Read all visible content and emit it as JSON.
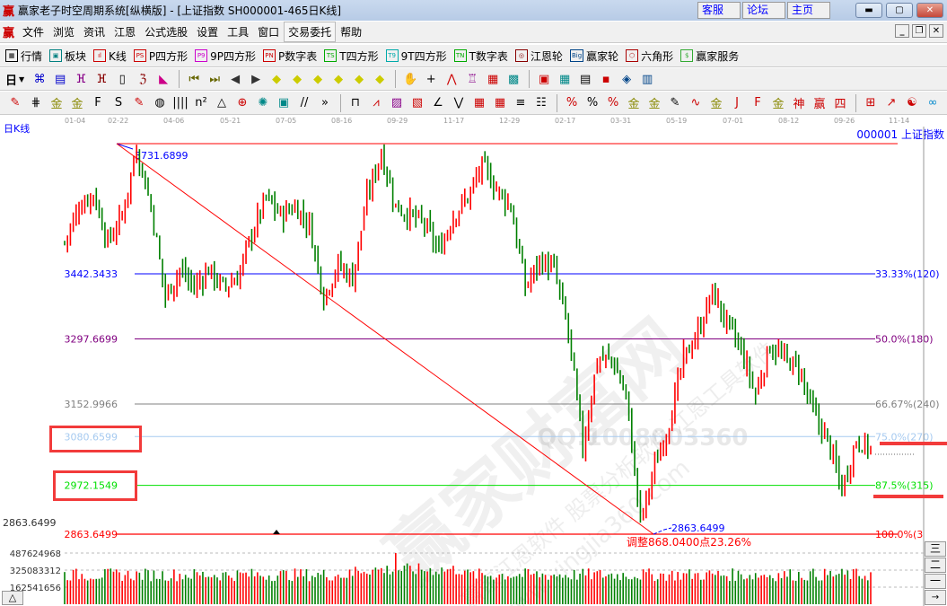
{
  "window": {
    "title": "赢家老子时空周期系统[纵横版] - [上证指数  SH000001-465日K线]",
    "logo": "赢",
    "links": [
      "客服",
      "论坛",
      "主页"
    ],
    "controls": [
      "minimize",
      "maximize",
      "close"
    ]
  },
  "menu": {
    "items": [
      "文件",
      "浏览",
      "资讯",
      "江恩",
      "公式选股",
      "设置",
      "工具",
      "窗口",
      "交易委托",
      "帮助"
    ],
    "highlighted": "交易委托"
  },
  "toolbar1": [
    {
      "icon": "quote-table-icon",
      "glyph": "▦",
      "label": "行情",
      "color": "#000"
    },
    {
      "icon": "sector-icon",
      "glyph": "▣",
      "label": "板块",
      "color": "#008080"
    },
    {
      "icon": "kline-icon",
      "glyph": "ıl",
      "label": "K线",
      "color": "#c00"
    },
    {
      "icon": "ps-icon",
      "glyph": "PS",
      "label": "P四方形",
      "color": "#c00"
    },
    {
      "icon": "p9-icon",
      "glyph": "P9",
      "label": "9P四方形",
      "color": "#c0c"
    },
    {
      "icon": "pn-icon",
      "glyph": "PN",
      "label": "P数字表",
      "color": "#c00"
    },
    {
      "icon": "ts-icon",
      "glyph": "TS",
      "label": "T四方形",
      "color": "#0a0"
    },
    {
      "icon": "t9-icon",
      "glyph": "T9",
      "label": "9T四方形",
      "color": "#0aa"
    },
    {
      "icon": "tn-icon",
      "glyph": "TN",
      "label": "T数字表",
      "color": "#0a0"
    },
    {
      "icon": "gann-wheel-icon",
      "glyph": "◎",
      "label": "江恩轮",
      "color": "#800"
    },
    {
      "icon": "big-wheel-icon",
      "glyph": "Big",
      "label": "赢家轮",
      "color": "#048"
    },
    {
      "icon": "hexagon-icon",
      "glyph": "⬡",
      "label": "六角形",
      "color": "#a00"
    },
    {
      "icon": "dollar-icon",
      "glyph": "$",
      "label": "赢家服务",
      "color": "#3a3"
    }
  ],
  "toolbar2": {
    "period": "日",
    "icons": [
      [
        "network-icon",
        "⌘",
        "#00c"
      ],
      [
        "notes-icon",
        "▤",
        "#00c"
      ],
      [
        "wave3-icon",
        "ⴼ",
        "#808"
      ],
      [
        "wave9-icon",
        "ⴼ",
        "#800"
      ],
      [
        "candle-icon",
        "▯",
        "#000"
      ],
      [
        "formula-icon",
        "ℨ",
        "#800"
      ],
      [
        "volume-profile-icon",
        "◣",
        "#c08"
      ],
      [
        "first-icon",
        "⏮",
        "#660"
      ],
      [
        "last-icon",
        "⏭",
        "#660"
      ],
      [
        "left-icon",
        "◀",
        "#333"
      ],
      [
        "right-icon",
        "▶",
        "#333"
      ],
      [
        "diamond-left-icon",
        "◆",
        "#cc0"
      ],
      [
        "diamond-right-icon",
        "◆",
        "#cc0"
      ],
      [
        "diamond-h-icon",
        "◆",
        "#cc0"
      ],
      [
        "diamond-x-icon",
        "◆",
        "#cc0"
      ],
      [
        "diamond-star-icon",
        "◆",
        "#cc0"
      ],
      [
        "diamond-v-icon",
        "◆",
        "#cc0"
      ],
      [
        "hand-icon",
        "✋",
        "#000"
      ],
      [
        "crosshair-icon",
        "+",
        "#000"
      ],
      [
        "line-tool-icon",
        "⋀",
        "#c00"
      ],
      [
        "shirt-icon",
        "♖",
        "#808"
      ],
      [
        "grid-icon",
        "▦",
        "#c00"
      ],
      [
        "pattern-icon",
        "▩",
        "#088"
      ],
      [
        "calendar-icon",
        "▣",
        "#c00"
      ],
      [
        "calculator-icon",
        "▦",
        "#088"
      ],
      [
        "document-icon",
        "▤",
        "#000"
      ],
      [
        "save-icon",
        "▪",
        "#c00"
      ],
      [
        "network2-icon",
        "◈",
        "#048"
      ],
      [
        "print-icon",
        "▥",
        "#048"
      ]
    ]
  },
  "toolbar3": {
    "icons": [
      [
        "pen-icon",
        "✎",
        "#c00"
      ],
      [
        "grid3-icon",
        "⋕",
        "#000"
      ],
      [
        "gold1-icon",
        "金",
        "#880"
      ],
      [
        "gold2-icon",
        "金",
        "#880"
      ],
      [
        "f-icon",
        "F",
        "#000"
      ],
      [
        "spiral-icon",
        "S",
        "#000"
      ],
      [
        "pen2-icon",
        "✎",
        "#c00"
      ],
      [
        "circle-grid-icon",
        "◍",
        "#000"
      ],
      [
        "lines4-icon",
        "||||",
        "#000"
      ],
      [
        "n2-icon",
        "n²",
        "#000"
      ],
      [
        "triangle-icon",
        "△",
        "#000"
      ],
      [
        "target-icon",
        "⊕",
        "#c00"
      ],
      [
        "web-icon",
        "✺",
        "#088"
      ],
      [
        "square-web-icon",
        "▣",
        "#088"
      ],
      [
        "gap-icon",
        "//",
        "#000"
      ],
      [
        "more-icon",
        "»",
        "#000"
      ],
      [
        "box-icon",
        "⊓",
        "#000"
      ],
      [
        "fan-icon",
        "⩘",
        "#c00"
      ],
      [
        "gann-box-icon",
        "▨",
        "#808"
      ],
      [
        "gann-sq-icon",
        "▧",
        "#c00"
      ],
      [
        "angle-icon",
        "∠",
        "#000"
      ],
      [
        "zigzag-icon",
        "⋁",
        "#000"
      ],
      [
        "grid-red-icon",
        "▦",
        "#c00"
      ],
      [
        "grid-red2-icon",
        "▦",
        "#c00"
      ],
      [
        "parallel-icon",
        "≡",
        "#000"
      ],
      [
        "ruler-icon",
        "☷",
        "#000"
      ],
      [
        "percent-red-icon",
        "%",
        "#c00"
      ],
      [
        "percent-icon",
        "%",
        "#000"
      ],
      [
        "percent-lines-icon",
        "%",
        "#c00"
      ],
      [
        "gold-circle-icon",
        "金",
        "#880"
      ],
      [
        "gold-lines-icon",
        "金",
        "#880"
      ],
      [
        "pen3-icon",
        "✎",
        "#000"
      ],
      [
        "sine-icon",
        "∿",
        "#c00"
      ],
      [
        "gold3-icon",
        "金",
        "#880"
      ],
      [
        "j-angle-icon",
        "J",
        "#c00"
      ],
      [
        "f-angle-icon",
        "F",
        "#c00"
      ],
      [
        "gold-angle-icon",
        "金",
        "#880"
      ],
      [
        "shen-icon",
        "神",
        "#c00"
      ],
      [
        "ying-icon",
        "赢",
        "#c00"
      ],
      [
        "si-icon",
        "四",
        "#c00"
      ],
      [
        "grid-yellow-icon",
        "⊞",
        "#c00"
      ],
      [
        "chart-line-icon",
        "↗",
        "#c00"
      ],
      [
        "yinyang-icon",
        "☯",
        "#c00"
      ],
      [
        "infinity-icon",
        "∞",
        "#08c"
      ]
    ]
  },
  "chart": {
    "period_label": "日K线",
    "symbol": "000001 上证指数",
    "date_ticks": [
      "01-04",
      "02-22",
      "04-06",
      "05-21",
      "07-05",
      "08-16",
      "09-29",
      "11-17",
      "12-29",
      "02-17",
      "03-31",
      "05-19",
      "07-01",
      "08-12",
      "09-26",
      "11-14"
    ],
    "high": {
      "label": "3731.6899",
      "value": 3731.6899
    },
    "low": {
      "label": "2863.6499",
      "value": 2863.6499
    },
    "adjust_text": "调整868.0400点23.26%",
    "fib_levels": [
      {
        "price": "3442.3433",
        "value": 3442.3433,
        "pct": "33.33%(120)",
        "color": "#0000ff"
      },
      {
        "price": "3297.6699",
        "value": 3297.6699,
        "pct": "50.0%(180)",
        "color": "#800080"
      },
      {
        "price": "3152.9966",
        "value": 3152.9966,
        "pct": "66.67%(240)",
        "color": "#808080"
      },
      {
        "price": "3080.6599",
        "value": 3080.6599,
        "pct": "75.0%(270)",
        "color": "#a6caf0"
      },
      {
        "price": "2972.1549",
        "value": 2972.1549,
        "pct": "87.5%(315)",
        "color": "#00e000"
      },
      {
        "price": "2863.6499",
        "value": 2863.6499,
        "pct": "100.0%(3",
        "color": "#ff0000"
      }
    ],
    "axis_low_label": "2863.6499",
    "close_path": [
      3512,
      3592,
      3622,
      3512,
      3572,
      3722,
      3592,
      3392,
      3452,
      3412,
      3452,
      3412,
      3432,
      3532,
      3612,
      3572,
      3592,
      3552,
      3392,
      3462,
      3432,
      3612,
      3712,
      3592,
      3572,
      3552,
      3492,
      3572,
      3612,
      3682,
      3632,
      3592,
      3412,
      3472,
      3452,
      3312,
      3053,
      3253,
      3253,
      3173,
      2894,
      3013,
      3113,
      3253,
      3312,
      3402,
      3332,
      3272,
      3173,
      3282,
      3253,
      3233,
      3133,
      3073,
      2963,
      3073,
      3053
    ],
    "colors": {
      "up": "#ff0000",
      "down": "#008000"
    }
  },
  "volume": {
    "labels": [
      "487624968",
      "325083312",
      "162541656"
    ],
    "max": 487624968
  },
  "watermark": {
    "main": "赢家财富网",
    "sub": "赢家江恩软件 股票分析软件 江恩工具软件",
    "url": "www.yingjia360.com",
    "qq": "QQ:1008003360"
  },
  "side_buttons": [
    "三",
    "二",
    "一",
    "→"
  ],
  "scroll_button": "△"
}
